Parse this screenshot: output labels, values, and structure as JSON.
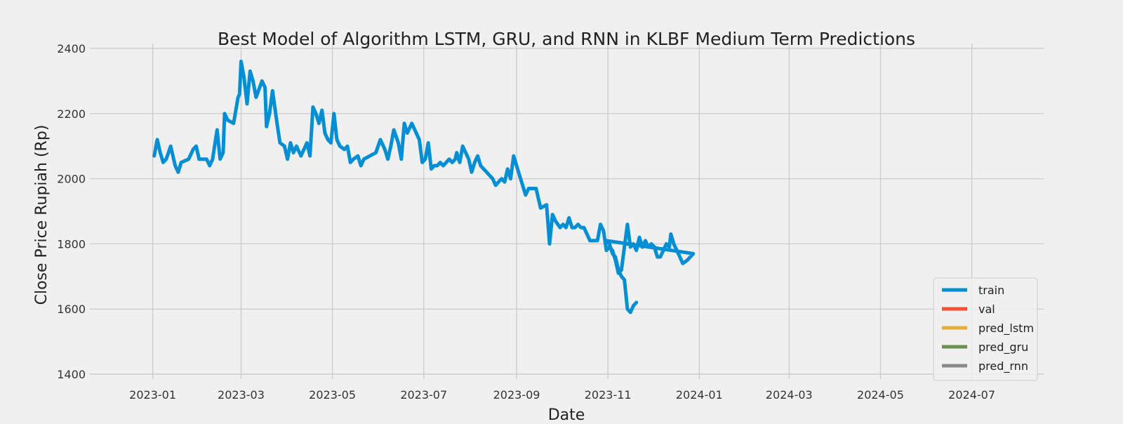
{
  "chart_data": {
    "type": "line",
    "title": "Best Model of Algorithm LSTM, GRU, and RNN in KLBF Medium Term Predictions",
    "xlabel": "Date",
    "ylabel": "Close Price Rupiah (Rp)",
    "xlim": [
      "2022-11-20",
      "2024-08-18"
    ],
    "ylim": [
      1385,
      2415
    ],
    "x_ticks": [
      "2023-01",
      "2023-03",
      "2023-05",
      "2023-07",
      "2023-09",
      "2023-11",
      "2024-01",
      "2024-03",
      "2024-05",
      "2024-07"
    ],
    "y_ticks": [
      1400,
      1600,
      1800,
      2000,
      2200,
      2400
    ],
    "grid": true,
    "legend_position": "lower-right",
    "series": [
      {
        "name": "train",
        "color": "#008fd5",
        "points": [
          [
            "2023-01-02",
            2070
          ],
          [
            "2023-01-04",
            2120
          ],
          [
            "2023-01-06",
            2080
          ],
          [
            "2023-01-08",
            2050
          ],
          [
            "2023-01-10",
            2060
          ],
          [
            "2023-01-13",
            2100
          ],
          [
            "2023-01-16",
            2040
          ],
          [
            "2023-01-18",
            2020
          ],
          [
            "2023-01-20",
            2050
          ],
          [
            "2023-01-25",
            2060
          ],
          [
            "2023-01-28",
            2090
          ],
          [
            "2023-01-30",
            2100
          ],
          [
            "2023-02-01",
            2060
          ],
          [
            "2023-02-06",
            2060
          ],
          [
            "2023-02-08",
            2040
          ],
          [
            "2023-02-10",
            2060
          ],
          [
            "2023-02-13",
            2150
          ],
          [
            "2023-02-15",
            2060
          ],
          [
            "2023-02-17",
            2080
          ],
          [
            "2023-02-18",
            2200
          ],
          [
            "2023-02-20",
            2180
          ],
          [
            "2023-02-24",
            2170
          ],
          [
            "2023-02-27",
            2250
          ],
          [
            "2023-02-28",
            2260
          ],
          [
            "2023-03-01",
            2360
          ],
          [
            "2023-03-03",
            2310
          ],
          [
            "2023-03-05",
            2230
          ],
          [
            "2023-03-07",
            2330
          ],
          [
            "2023-03-09",
            2300
          ],
          [
            "2023-03-11",
            2250
          ],
          [
            "2023-03-15",
            2300
          ],
          [
            "2023-03-17",
            2280
          ],
          [
            "2023-03-18",
            2160
          ],
          [
            "2023-03-20",
            2200
          ],
          [
            "2023-03-22",
            2270
          ],
          [
            "2023-03-25",
            2170
          ],
          [
            "2023-03-27",
            2110
          ],
          [
            "2023-03-30",
            2100
          ],
          [
            "2023-04-01",
            2060
          ],
          [
            "2023-04-03",
            2110
          ],
          [
            "2023-04-05",
            2080
          ],
          [
            "2023-04-07",
            2100
          ],
          [
            "2023-04-10",
            2070
          ],
          [
            "2023-04-14",
            2110
          ],
          [
            "2023-04-16",
            2070
          ],
          [
            "2023-04-18",
            2220
          ],
          [
            "2023-04-20",
            2200
          ],
          [
            "2023-04-22",
            2170
          ],
          [
            "2023-04-24",
            2210
          ],
          [
            "2023-04-26",
            2140
          ],
          [
            "2023-04-28",
            2120
          ],
          [
            "2023-04-30",
            2110
          ],
          [
            "2023-05-02",
            2200
          ],
          [
            "2023-05-04",
            2120
          ],
          [
            "2023-05-06",
            2100
          ],
          [
            "2023-05-09",
            2090
          ],
          [
            "2023-05-11",
            2100
          ],
          [
            "2023-05-13",
            2050
          ],
          [
            "2023-05-15",
            2060
          ],
          [
            "2023-05-18",
            2070
          ],
          [
            "2023-05-20",
            2040
          ],
          [
            "2023-05-22",
            2060
          ],
          [
            "2023-05-30",
            2080
          ],
          [
            "2023-06-02",
            2120
          ],
          [
            "2023-06-05",
            2090
          ],
          [
            "2023-06-07",
            2060
          ],
          [
            "2023-06-09",
            2100
          ],
          [
            "2023-06-11",
            2150
          ],
          [
            "2023-06-14",
            2110
          ],
          [
            "2023-06-16",
            2060
          ],
          [
            "2023-06-18",
            2170
          ],
          [
            "2023-06-20",
            2140
          ],
          [
            "2023-06-23",
            2170
          ],
          [
            "2023-06-26",
            2140
          ],
          [
            "2023-06-28",
            2120
          ],
          [
            "2023-06-30",
            2050
          ],
          [
            "2023-07-02",
            2060
          ],
          [
            "2023-07-04",
            2110
          ],
          [
            "2023-07-06",
            2030
          ],
          [
            "2023-07-08",
            2040
          ],
          [
            "2023-07-10",
            2040
          ],
          [
            "2023-07-12",
            2050
          ],
          [
            "2023-07-14",
            2040
          ],
          [
            "2023-07-16",
            2050
          ],
          [
            "2023-07-18",
            2060
          ],
          [
            "2023-07-20",
            2050
          ],
          [
            "2023-07-22",
            2060
          ],
          [
            "2023-07-23",
            2080
          ],
          [
            "2023-07-25",
            2050
          ],
          [
            "2023-07-27",
            2100
          ],
          [
            "2023-07-29",
            2080
          ],
          [
            "2023-07-31",
            2060
          ],
          [
            "2023-08-02",
            2020
          ],
          [
            "2023-08-04",
            2050
          ],
          [
            "2023-08-06",
            2070
          ],
          [
            "2023-08-08",
            2040
          ],
          [
            "2023-08-10",
            2030
          ],
          [
            "2023-08-12",
            2020
          ],
          [
            "2023-08-14",
            2010
          ],
          [
            "2023-08-16",
            2000
          ],
          [
            "2023-08-18",
            1980
          ],
          [
            "2023-08-20",
            1990
          ],
          [
            "2023-08-22",
            2000
          ],
          [
            "2023-08-24",
            1990
          ],
          [
            "2023-08-26",
            2030
          ],
          [
            "2023-08-28",
            2000
          ],
          [
            "2023-08-30",
            2070
          ],
          [
            "2023-09-01",
            2040
          ],
          [
            "2023-09-03",
            2010
          ],
          [
            "2023-09-05",
            1980
          ],
          [
            "2023-09-07",
            1950
          ],
          [
            "2023-09-09",
            1970
          ],
          [
            "2023-09-11",
            1970
          ],
          [
            "2023-09-14",
            1970
          ],
          [
            "2023-09-17",
            1910
          ],
          [
            "2023-09-21",
            1920
          ],
          [
            "2023-09-23",
            1800
          ],
          [
            "2023-09-25",
            1890
          ],
          [
            "2023-09-27",
            1870
          ],
          [
            "2023-09-30",
            1850
          ],
          [
            "2023-10-02",
            1860
          ],
          [
            "2023-10-04",
            1850
          ],
          [
            "2023-10-06",
            1880
          ],
          [
            "2023-10-08",
            1850
          ],
          [
            "2023-10-10",
            1850
          ],
          [
            "2023-10-12",
            1860
          ],
          [
            "2023-10-14",
            1850
          ],
          [
            "2023-10-16",
            1850
          ],
          [
            "2023-10-20",
            1810
          ],
          [
            "2023-10-22",
            1810
          ],
          [
            "2023-10-25",
            1810
          ],
          [
            "2023-10-27",
            1860
          ],
          [
            "2023-10-29",
            1840
          ],
          [
            "2023-10-31",
            1780
          ],
          [
            "2023-11-02",
            1790
          ],
          [
            "2023-11-04",
            1780
          ],
          [
            "2023-11-06",
            1750
          ],
          [
            "2023-11-08",
            1710
          ],
          [
            "2023-11-10",
            1720
          ],
          [
            "2023-11-12",
            1790
          ],
          [
            "2023-11-14",
            1860
          ],
          [
            "2023-11-16",
            1790
          ],
          [
            "2023-11-18",
            1800
          ],
          [
            "2023-11-20",
            1780
          ],
          [
            "2023-11-22",
            1820
          ],
          [
            "2023-11-24",
            1790
          ],
          [
            "2023-11-26",
            1810
          ],
          [
            "2023-11-28",
            1790
          ],
          [
            "2023-11-30",
            1800
          ],
          [
            "2023-12-02",
            1790
          ],
          [
            "2023-12-04",
            1760
          ],
          [
            "2023-12-06",
            1760
          ],
          [
            "2023-12-08",
            1780
          ],
          [
            "2023-12-10",
            1800
          ],
          [
            "2023-12-12",
            1790
          ],
          [
            "2023-12-13",
            1830
          ],
          [
            "2023-12-15",
            1800
          ],
          [
            "2023-12-17",
            1780
          ],
          [
            "2023-12-19",
            1760
          ],
          [
            "2023-12-21",
            1740
          ],
          [
            "2023-12-24",
            1750
          ],
          [
            "2023-12-26",
            1760
          ],
          [
            "2023-12-28",
            1770
          ],
          [
            "2023-10-31",
            1810
          ],
          [
            "2023-11-02",
            1800
          ],
          [
            "2023-11-04",
            1770
          ],
          [
            "2023-11-06",
            1760
          ],
          [
            "2023-11-08",
            1720
          ],
          [
            "2023-11-10",
            1700
          ],
          [
            "2023-11-12",
            1690
          ],
          [
            "2023-11-14",
            1600
          ],
          [
            "2023-11-16",
            1590
          ],
          [
            "2023-11-18",
            1610
          ],
          [
            "2023-11-20",
            1620
          ]
        ]
      },
      {
        "name": "val",
        "color": "#fc4f30",
        "points": []
      },
      {
        "name": "pred_lstm",
        "color": "#e5ae38",
        "points": []
      },
      {
        "name": "pred_gru",
        "color": "#6d904f",
        "points": []
      },
      {
        "name": "pred_rnn",
        "color": "#8b8b8b",
        "points": []
      }
    ]
  }
}
